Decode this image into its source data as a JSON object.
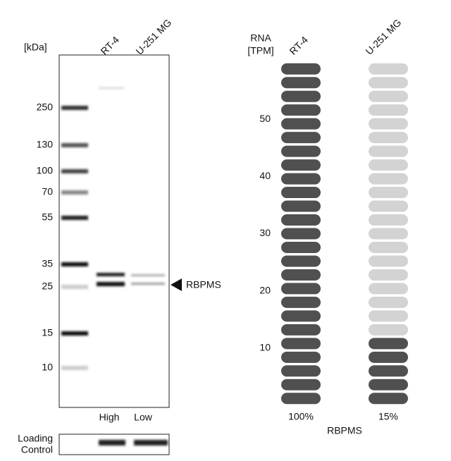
{
  "blot": {
    "unit": "[kDa]",
    "lanes": [
      "RT-4",
      "U-251 MG"
    ],
    "markers": [
      250,
      130,
      100,
      70,
      55,
      35,
      25,
      15,
      10
    ],
    "target": "RBPMS",
    "levels": [
      "High",
      "Low"
    ],
    "loading_control": [
      "Loading",
      "Control"
    ]
  },
  "rna": {
    "axis_label": [
      "RNA",
      "[TPM]"
    ],
    "ylim": [
      0,
      60
    ],
    "yticks": [
      10,
      20,
      30,
      40,
      50
    ],
    "pills": 25,
    "samples": [
      {
        "name": "RT-4",
        "filled": 25,
        "percent": "100%"
      },
      {
        "name": "U-251 MG",
        "filled": 5,
        "percent": "15%"
      }
    ],
    "gene": "RBPMS"
  }
}
